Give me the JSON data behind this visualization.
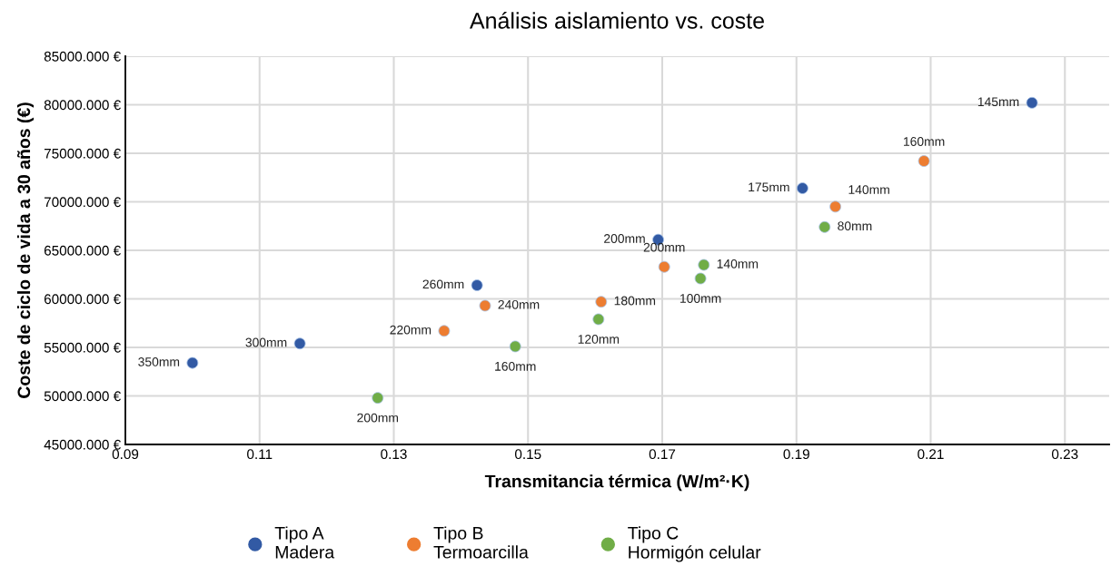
{
  "chart_data": {
    "type": "scatter",
    "title": "Análisis aislamiento vs. coste",
    "xlabel": "Transmitancia térmica (W/m²·K)",
    "ylabel": "Coste de ciclo de vida a 30 años (€)",
    "xlim": [
      0.09,
      0.2366
    ],
    "xticks": [
      0.09,
      0.11,
      0.13,
      0.15,
      0.17,
      0.19,
      0.21,
      0.23
    ],
    "ylim": [
      45000,
      85000
    ],
    "yticks": [
      {
        "value": 45000,
        "label": "45000.000 €"
      },
      {
        "value": 50000,
        "label": "50000.000 €"
      },
      {
        "value": 55000,
        "label": "55000.000 €"
      },
      {
        "value": 60000,
        "label": "60000.000 €"
      },
      {
        "value": 65000,
        "label": "65000.000 €"
      },
      {
        "value": 70000,
        "label": "70000.000 €"
      },
      {
        "value": 75000,
        "label": "75000.000 €"
      },
      {
        "value": 80000,
        "label": "80000.000 €"
      },
      {
        "value": 85000,
        "label": "85000.000 €"
      }
    ],
    "grid": true,
    "legend": "bottom",
    "marker": "circle",
    "series": [
      {
        "name": "Tipo A\nMadera",
        "color": "#325aa4",
        "x": [
          0.1,
          0.116,
          0.1424,
          0.1694,
          0.1909,
          0.2251
        ],
        "values": [
          53400,
          55400,
          61400,
          66100,
          71400,
          80200
        ]
      },
      {
        "name": "Tipo B\nTermoarcilla",
        "color": "#ed7d31",
        "x": [
          0.1375,
          0.1436,
          0.1609,
          0.1703,
          0.1958,
          0.209
        ],
        "values": [
          56700,
          59300,
          59700,
          63300,
          69500,
          74200
        ]
      },
      {
        "name": "Tipo C\nHormigón celular",
        "color": "#70ad47",
        "x": [
          0.1276,
          0.1481,
          0.1605,
          0.1757,
          0.1762,
          0.1942
        ],
        "values": [
          49800,
          55100,
          57900,
          62100,
          63500,
          67400
        ]
      }
    ],
    "annotations": [
      {
        "text": "350mm",
        "x": 0.1,
        "y": 53400
      },
      {
        "text": "300mm",
        "x": 0.116,
        "y": 55400
      },
      {
        "text": "260mm",
        "x": 0.1424,
        "y": 61400
      },
      {
        "text": "200mm",
        "x": 0.1694,
        "y": 66100
      },
      {
        "text": "175mm",
        "x": 0.1909,
        "y": 71400
      },
      {
        "text": "145mm",
        "x": 0.2251,
        "y": 80200
      },
      {
        "text": "220mm",
        "x": 0.1375,
        "y": 56700
      },
      {
        "text": "240mm",
        "x": 0.1436,
        "y": 59300
      },
      {
        "text": "180mm",
        "x": 0.1609,
        "y": 59700
      },
      {
        "text": "200mm",
        "x": 0.1703,
        "y": 63300
      },
      {
        "text": "140mm",
        "x": 0.1958,
        "y": 69500
      },
      {
        "text": "160mm",
        "x": 0.209,
        "y": 74200
      },
      {
        "text": "200mm",
        "x": 0.1276,
        "y": 49800
      },
      {
        "text": "160mm",
        "x": 0.1481,
        "y": 55100
      },
      {
        "text": "120mm",
        "x": 0.1605,
        "y": 57900
      },
      {
        "text": "100mm",
        "x": 0.1757,
        "y": 62100
      },
      {
        "text": "140mm",
        "x": 0.1762,
        "y": 63500
      },
      {
        "text": "80mm",
        "x": 0.1942,
        "y": 67400
      }
    ]
  }
}
